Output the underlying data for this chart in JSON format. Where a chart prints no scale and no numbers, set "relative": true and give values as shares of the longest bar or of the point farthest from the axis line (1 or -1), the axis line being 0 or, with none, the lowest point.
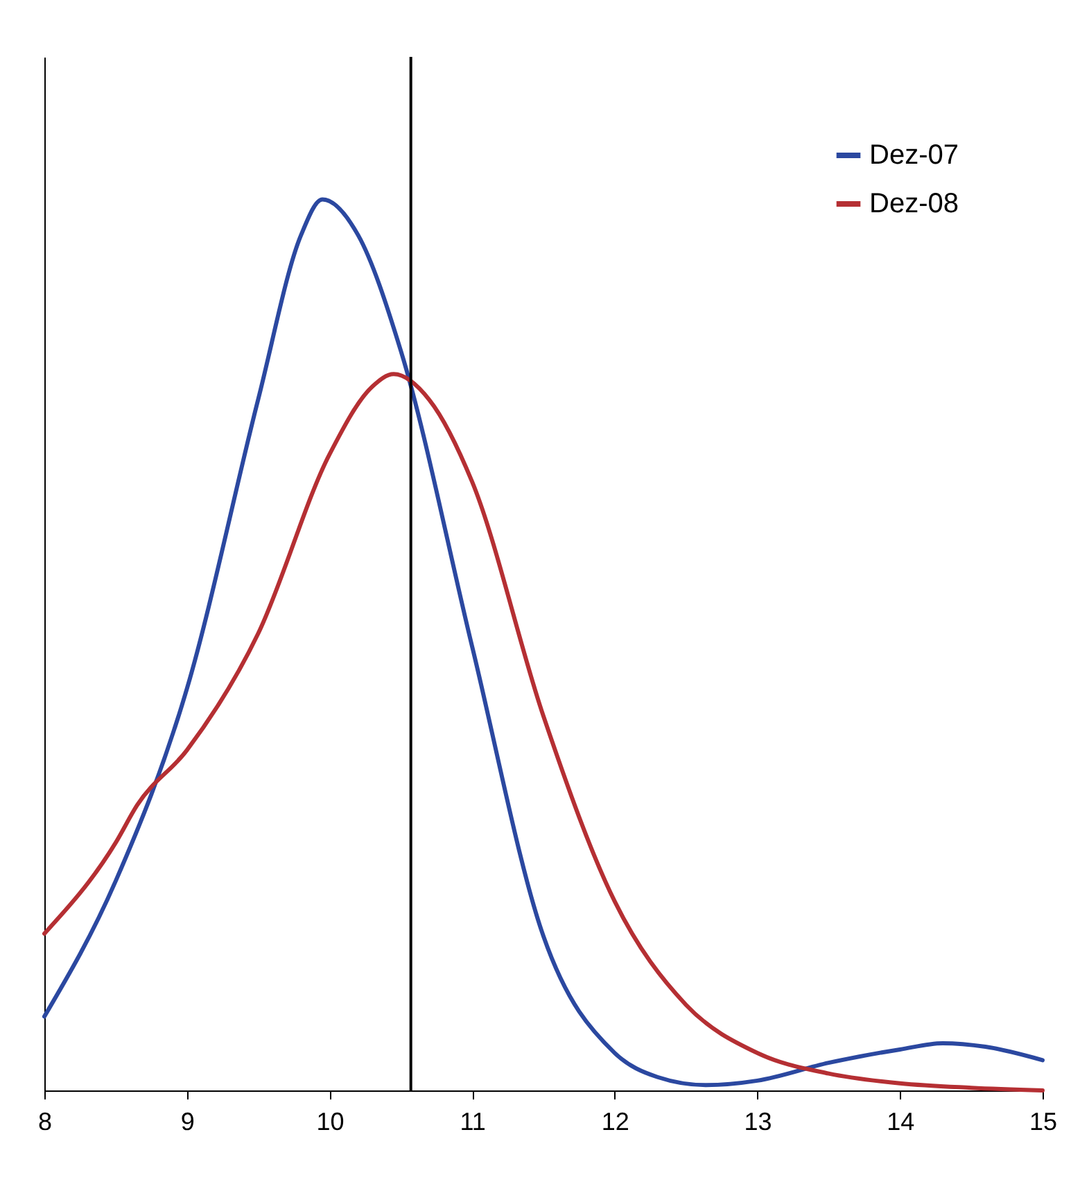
{
  "chart_data": {
    "type": "line",
    "relative": true,
    "legend": "top right",
    "grid": false,
    "marker": "none",
    "line_style": "solid",
    "xlim": [
      8,
      15
    ],
    "xticks": [
      8,
      9,
      10,
      11,
      12,
      13,
      14,
      15
    ],
    "ref_lines": [
      {
        "axis": "x",
        "value": 10.57,
        "color": "#000000"
      }
    ],
    "series": [
      {
        "name": "Dez-07",
        "color": "#2b48a0",
        "x": [
          8,
          8.5,
          9,
          9.5,
          9.8,
          9.95,
          10.2,
          10.5,
          11,
          11.5,
          12,
          12.3,
          12.64,
          13,
          13.5,
          14,
          14.3,
          14.6,
          15
        ],
        "values": [
          0.083,
          0.235,
          0.451,
          0.776,
          0.96,
          1.0,
          0.96,
          0.83,
          0.498,
          0.173,
          0.042,
          0.015,
          0.006,
          0.011,
          0.031,
          0.046,
          0.053,
          0.049,
          0.034
        ]
      },
      {
        "name": "Dez-08",
        "color": "#b52f33",
        "x": [
          8,
          8.5,
          8.65,
          9,
          9.5,
          10,
          10.3,
          10.45,
          10.7,
          11,
          11.5,
          12,
          12.5,
          13,
          13.5,
          14,
          14.5,
          15
        ],
        "values": [
          0.176,
          0.278,
          0.32,
          0.382,
          0.513,
          0.714,
          0.79,
          0.804,
          0.775,
          0.683,
          0.42,
          0.212,
          0.096,
          0.042,
          0.019,
          0.008,
          0.003,
          0.0
        ]
      }
    ]
  }
}
